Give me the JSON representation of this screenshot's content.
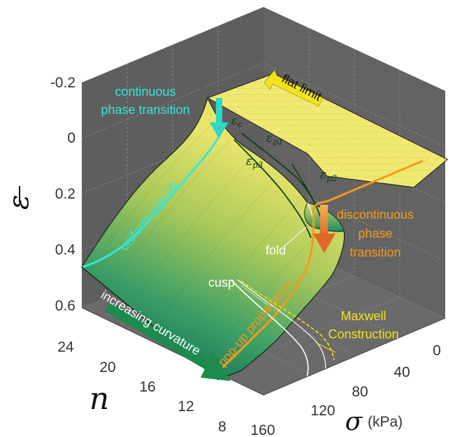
{
  "axes": {
    "epsilon_label": "ε",
    "n_label": "n",
    "sigma_label": "σ",
    "sigma_unit": "(kPa)",
    "epsilon_ticks": [
      "-0.2",
      "0",
      "0.2",
      "0.4",
      "0.6"
    ],
    "n_ticks": [
      "24",
      "20",
      "16",
      "12",
      "8"
    ],
    "sigma_ticks": [
      "0",
      "40",
      "80",
      "120",
      "160"
    ]
  },
  "annotations": {
    "continuous_line1": "continuous",
    "continuous_line2": "phase transition",
    "flat_limit": "flat limit",
    "eps_c": "ε",
    "eps_c_sub": "c",
    "eps_p1": "ε",
    "eps_p1_sub": "p1",
    "eps_p2": "ε",
    "eps_p2_sub": "p2",
    "eps_p3": "ε",
    "eps_p3_sub": "p3",
    "uniform_popup": "uniform pop-up",
    "discontinuous_line1": "discontinuous",
    "discontinuous_line2": "phase",
    "discontinuous_line3": "transition",
    "fold": "fold",
    "cusp": "cusp",
    "popup_propagation": "pop-up propagation",
    "increasing_curvature": "increasing curvature",
    "maxwell_line1": "Maxwell",
    "maxwell_line2": "Construction"
  },
  "colors": {
    "box_gray": "#5f5f5f",
    "box_gray_light": "#6b6b6b",
    "surface_yellow": "#f2ea6a",
    "surface_green": "#0f7a5a",
    "cyan": "#37e6d6",
    "orange": "#f39a1c",
    "yellow_text": "#f5e11a",
    "dark_green_arrow": "#1e8a4e"
  }
}
